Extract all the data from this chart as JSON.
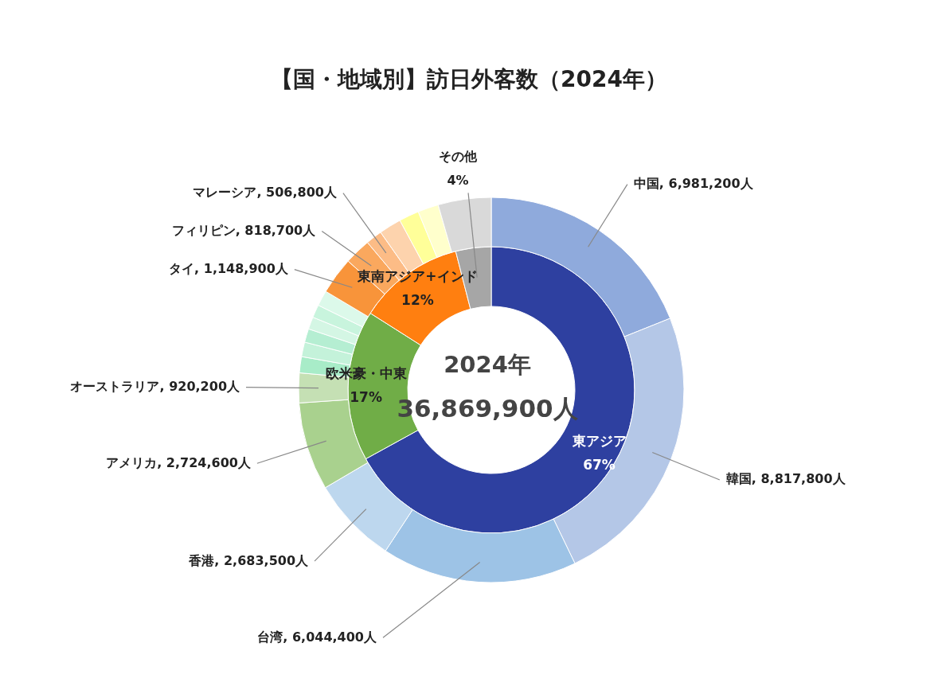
{
  "chart_data": [
    {
      "type": "donut",
      "title": "【国・地域別】訪日外客数（2024年）",
      "categories": [
        "東アジア",
        "欧米豪・中東",
        "東南アジア+インド",
        "その他"
      ],
      "values": [
        67,
        17,
        12,
        4
      ],
      "value_labels": [
        "67%",
        "17%",
        "12%",
        "4%"
      ],
      "colors": [
        "#2e40a0",
        "#70ad47",
        "#ff7f10",
        "#a6a6a6"
      ],
      "annotations": [
        "2024年",
        "36,869,900人"
      ]
    },
    {
      "type": "donut",
      "categories": [
        "中国, 6,981,200人",
        "韓国, 8,817,800人",
        "台湾, 6,044,400人",
        "香港, 2,683,500人",
        "アメリカ, 2,724,600人",
        "オーストラリア, 920,200人",
        null,
        null,
        null,
        null,
        null,
        null,
        "タイ, 1,148,900人",
        "フィリピン, 818,700人",
        "マレーシア, 506,800人",
        null,
        null,
        null,
        null
      ],
      "values": [
        6981200,
        8817800,
        6044400,
        2683500,
        2724600,
        920200,
        500000,
        450000,
        420000,
        380000,
        400000,
        480000,
        1148900,
        818700,
        506800,
        690000,
        620000,
        640000,
        1640000
      ],
      "colors": [
        "#8faadc",
        "#b4c7e7",
        "#9dc3e6",
        "#bdd7ee",
        "#a9d18e",
        "#c5e0b4",
        "#a8ecc8",
        "#c4f2da",
        "#b5eed2",
        "#d4f6e4",
        "#c8f4dd",
        "#dcf9ea",
        "#f8943a",
        "#faa85e",
        "#fcbc86",
        "#fdd3ad",
        "#ffff99",
        "#ffffcc",
        "#d9d9d9"
      ]
    }
  ]
}
